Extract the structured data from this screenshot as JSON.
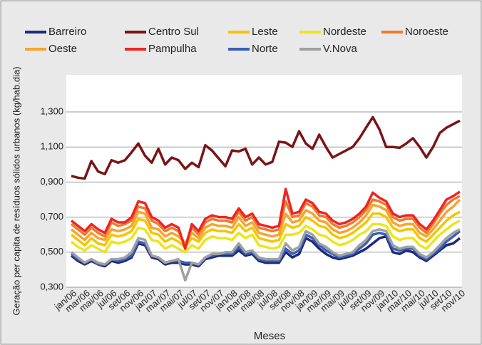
{
  "chart_data": {
    "type": "line",
    "xlabel": "Meses",
    "ylabel": "Geração per capita de resíduos sólidos urbanos (kg/hab.dia)",
    "categories": [
      "jan/06",
      null,
      "mar/06",
      null,
      "mai/06",
      null,
      "jul/06",
      null,
      "set/06",
      null,
      "nov/06",
      null,
      "jan/07",
      null,
      "mar/07",
      null,
      "mai/07",
      null,
      "jul/07",
      null,
      "set/07",
      null,
      "nov/07",
      null,
      "jan/08",
      null,
      "mar/08",
      null,
      "mai/08",
      null,
      "jul/08",
      null,
      "set/08",
      null,
      "nov/08",
      null,
      "jan/09",
      null,
      "mar/09",
      null,
      "mai/09",
      null,
      "jul/09",
      null,
      "set/09",
      null,
      "nov/09",
      null,
      "jan/10",
      null,
      "mar/10",
      null,
      "mai/10",
      null,
      "jul/10",
      null,
      "set/10",
      null,
      "nov/10"
    ],
    "ylim": [
      0.3,
      1.3
    ],
    "yticks": [
      {
        "value": 0.3,
        "label": "0,300"
      },
      {
        "value": 0.5,
        "label": "0,500"
      },
      {
        "value": 0.7,
        "label": "0,700"
      },
      {
        "value": 0.9,
        "label": "0,900"
      },
      {
        "value": 1.1,
        "label": "1,100"
      },
      {
        "value": 1.3,
        "label": "1,300"
      }
    ],
    "grid": true,
    "legend": "top",
    "series": [
      {
        "name": "Barreiro",
        "color": "#1f2a7a",
        "values": [
          0.48,
          0.45,
          0.43,
          0.45,
          0.43,
          0.42,
          0.45,
          0.44,
          0.45,
          0.47,
          0.55,
          0.54,
          0.47,
          0.46,
          0.43,
          0.44,
          0.44,
          0.43,
          0.43,
          0.42,
          0.46,
          0.47,
          0.48,
          0.48,
          0.48,
          0.51,
          0.48,
          0.49,
          0.45,
          0.44,
          0.44,
          0.44,
          0.5,
          0.47,
          0.49,
          0.58,
          0.56,
          0.52,
          0.49,
          0.47,
          0.46,
          0.47,
          0.48,
          0.5,
          0.52,
          0.55,
          0.58,
          0.59,
          0.5,
          0.49,
          0.51,
          0.5,
          0.47,
          0.45,
          0.48,
          0.51,
          0.54,
          0.55,
          0.58
        ]
      },
      {
        "name": "Centro Sul",
        "color": "#7a1416",
        "values": [
          0.935,
          0.925,
          0.92,
          1.02,
          0.96,
          0.945,
          1.025,
          1.01,
          1.025,
          1.07,
          1.12,
          1.05,
          1.01,
          1.09,
          1.0,
          1.04,
          1.025,
          0.975,
          1.01,
          0.985,
          1.11,
          1.08,
          1.035,
          0.99,
          1.08,
          1.075,
          1.09,
          1.0,
          1.04,
          1.0,
          1.015,
          1.13,
          1.125,
          1.1,
          1.19,
          1.12,
          1.09,
          1.17,
          1.1,
          1.04,
          1.06,
          1.08,
          1.1,
          1.15,
          1.21,
          1.27,
          1.2,
          1.1,
          1.1,
          1.095,
          1.12,
          1.15,
          1.1,
          1.04,
          1.1,
          1.18,
          1.21,
          1.23,
          1.25
        ]
      },
      {
        "name": "Leste",
        "color": "#f5c400",
        "values": [
          0.6,
          0.57,
          0.54,
          0.58,
          0.55,
          0.54,
          0.6,
          0.59,
          0.6,
          0.62,
          0.69,
          0.68,
          0.61,
          0.6,
          0.56,
          0.58,
          0.56,
          0.53,
          0.58,
          0.56,
          0.61,
          0.63,
          0.62,
          0.62,
          0.61,
          0.66,
          0.62,
          0.64,
          0.58,
          0.57,
          0.56,
          0.57,
          0.66,
          0.64,
          0.65,
          0.7,
          0.68,
          0.65,
          0.64,
          0.6,
          0.58,
          0.59,
          0.61,
          0.64,
          0.67,
          0.72,
          0.72,
          0.7,
          0.64,
          0.62,
          0.63,
          0.63,
          0.58,
          0.56,
          0.6,
          0.64,
          0.68,
          0.71,
          0.73
        ]
      },
      {
        "name": "Nordeste",
        "color": "#ece51a",
        "values": [
          0.56,
          0.53,
          0.51,
          0.54,
          0.52,
          0.5,
          0.56,
          0.55,
          0.56,
          0.58,
          0.64,
          0.63,
          0.57,
          0.56,
          0.52,
          0.54,
          0.52,
          0.5,
          0.54,
          0.52,
          0.57,
          0.59,
          0.58,
          0.58,
          0.57,
          0.61,
          0.58,
          0.6,
          0.54,
          0.53,
          0.52,
          0.53,
          0.6,
          0.6,
          0.61,
          0.65,
          0.63,
          0.6,
          0.59,
          0.56,
          0.54,
          0.55,
          0.57,
          0.6,
          0.62,
          0.66,
          0.66,
          0.65,
          0.59,
          0.57,
          0.58,
          0.58,
          0.54,
          0.52,
          0.56,
          0.6,
          0.63,
          0.66,
          0.68
        ]
      },
      {
        "name": "Noroeste",
        "color": "#f07a2a",
        "values": [
          0.66,
          0.63,
          0.6,
          0.64,
          0.61,
          0.59,
          0.67,
          0.65,
          0.66,
          0.68,
          0.76,
          0.75,
          0.68,
          0.66,
          0.62,
          0.64,
          0.62,
          0.54,
          0.64,
          0.6,
          0.67,
          0.69,
          0.68,
          0.68,
          0.67,
          0.73,
          0.68,
          0.7,
          0.64,
          0.63,
          0.62,
          0.63,
          0.79,
          0.7,
          0.71,
          0.78,
          0.76,
          0.71,
          0.7,
          0.66,
          0.64,
          0.65,
          0.67,
          0.7,
          0.74,
          0.8,
          0.79,
          0.77,
          0.7,
          0.68,
          0.69,
          0.69,
          0.64,
          0.61,
          0.66,
          0.72,
          0.77,
          0.8,
          0.82
        ]
      },
      {
        "name": "Oeste",
        "color": "#f6a331",
        "values": [
          0.63,
          0.6,
          0.57,
          0.61,
          0.58,
          0.57,
          0.63,
          0.62,
          0.63,
          0.65,
          0.73,
          0.72,
          0.64,
          0.63,
          0.59,
          0.61,
          0.59,
          0.55,
          0.61,
          0.58,
          0.64,
          0.66,
          0.65,
          0.65,
          0.64,
          0.7,
          0.65,
          0.67,
          0.61,
          0.6,
          0.59,
          0.6,
          0.72,
          0.67,
          0.68,
          0.74,
          0.72,
          0.68,
          0.67,
          0.63,
          0.61,
          0.62,
          0.64,
          0.67,
          0.71,
          0.77,
          0.76,
          0.74,
          0.67,
          0.65,
          0.66,
          0.66,
          0.61,
          0.59,
          0.63,
          0.68,
          0.73,
          0.76,
          0.8
        ]
      },
      {
        "name": "Pampulha",
        "color": "#ee2424",
        "values": [
          0.68,
          0.65,
          0.62,
          0.66,
          0.63,
          0.61,
          0.69,
          0.67,
          0.67,
          0.7,
          0.79,
          0.78,
          0.7,
          0.68,
          0.64,
          0.66,
          0.64,
          0.52,
          0.66,
          0.62,
          0.69,
          0.71,
          0.7,
          0.7,
          0.69,
          0.75,
          0.7,
          0.72,
          0.66,
          0.65,
          0.64,
          0.65,
          0.86,
          0.72,
          0.73,
          0.8,
          0.78,
          0.73,
          0.72,
          0.68,
          0.66,
          0.67,
          0.69,
          0.72,
          0.76,
          0.84,
          0.81,
          0.79,
          0.72,
          0.7,
          0.71,
          0.71,
          0.66,
          0.63,
          0.68,
          0.74,
          0.8,
          0.82,
          0.845
        ]
      },
      {
        "name": "Norte",
        "color": "#3a5fb5",
        "values": [
          0.49,
          0.46,
          0.44,
          0.46,
          0.43,
          0.43,
          0.46,
          0.45,
          0.46,
          0.48,
          0.56,
          0.55,
          0.48,
          0.47,
          0.44,
          0.45,
          0.45,
          0.44,
          0.44,
          0.43,
          0.47,
          0.48,
          0.49,
          0.49,
          0.49,
          0.53,
          0.49,
          0.5,
          0.46,
          0.45,
          0.45,
          0.45,
          0.52,
          0.49,
          0.51,
          0.6,
          0.58,
          0.54,
          0.51,
          0.49,
          0.47,
          0.48,
          0.49,
          0.52,
          0.55,
          0.6,
          0.61,
          0.6,
          0.52,
          0.51,
          0.52,
          0.52,
          0.48,
          0.46,
          0.49,
          0.52,
          0.56,
          0.59,
          0.62
        ]
      },
      {
        "name": "V.Nova",
        "color": "#a0a0a0",
        "values": [
          0.5,
          0.47,
          0.44,
          0.46,
          0.44,
          0.43,
          0.46,
          0.46,
          0.47,
          0.5,
          0.58,
          0.57,
          0.48,
          0.47,
          0.44,
          0.45,
          0.46,
          0.34,
          0.44,
          0.43,
          0.47,
          0.49,
          0.49,
          0.5,
          0.5,
          0.55,
          0.5,
          0.51,
          0.47,
          0.46,
          0.46,
          0.46,
          0.55,
          0.51,
          0.53,
          0.62,
          0.6,
          0.55,
          0.53,
          0.5,
          0.48,
          0.49,
          0.5,
          0.54,
          0.57,
          0.62,
          0.63,
          0.62,
          0.54,
          0.52,
          0.53,
          0.53,
          0.49,
          0.47,
          0.5,
          0.54,
          0.58,
          0.61,
          0.63
        ]
      }
    ]
  }
}
